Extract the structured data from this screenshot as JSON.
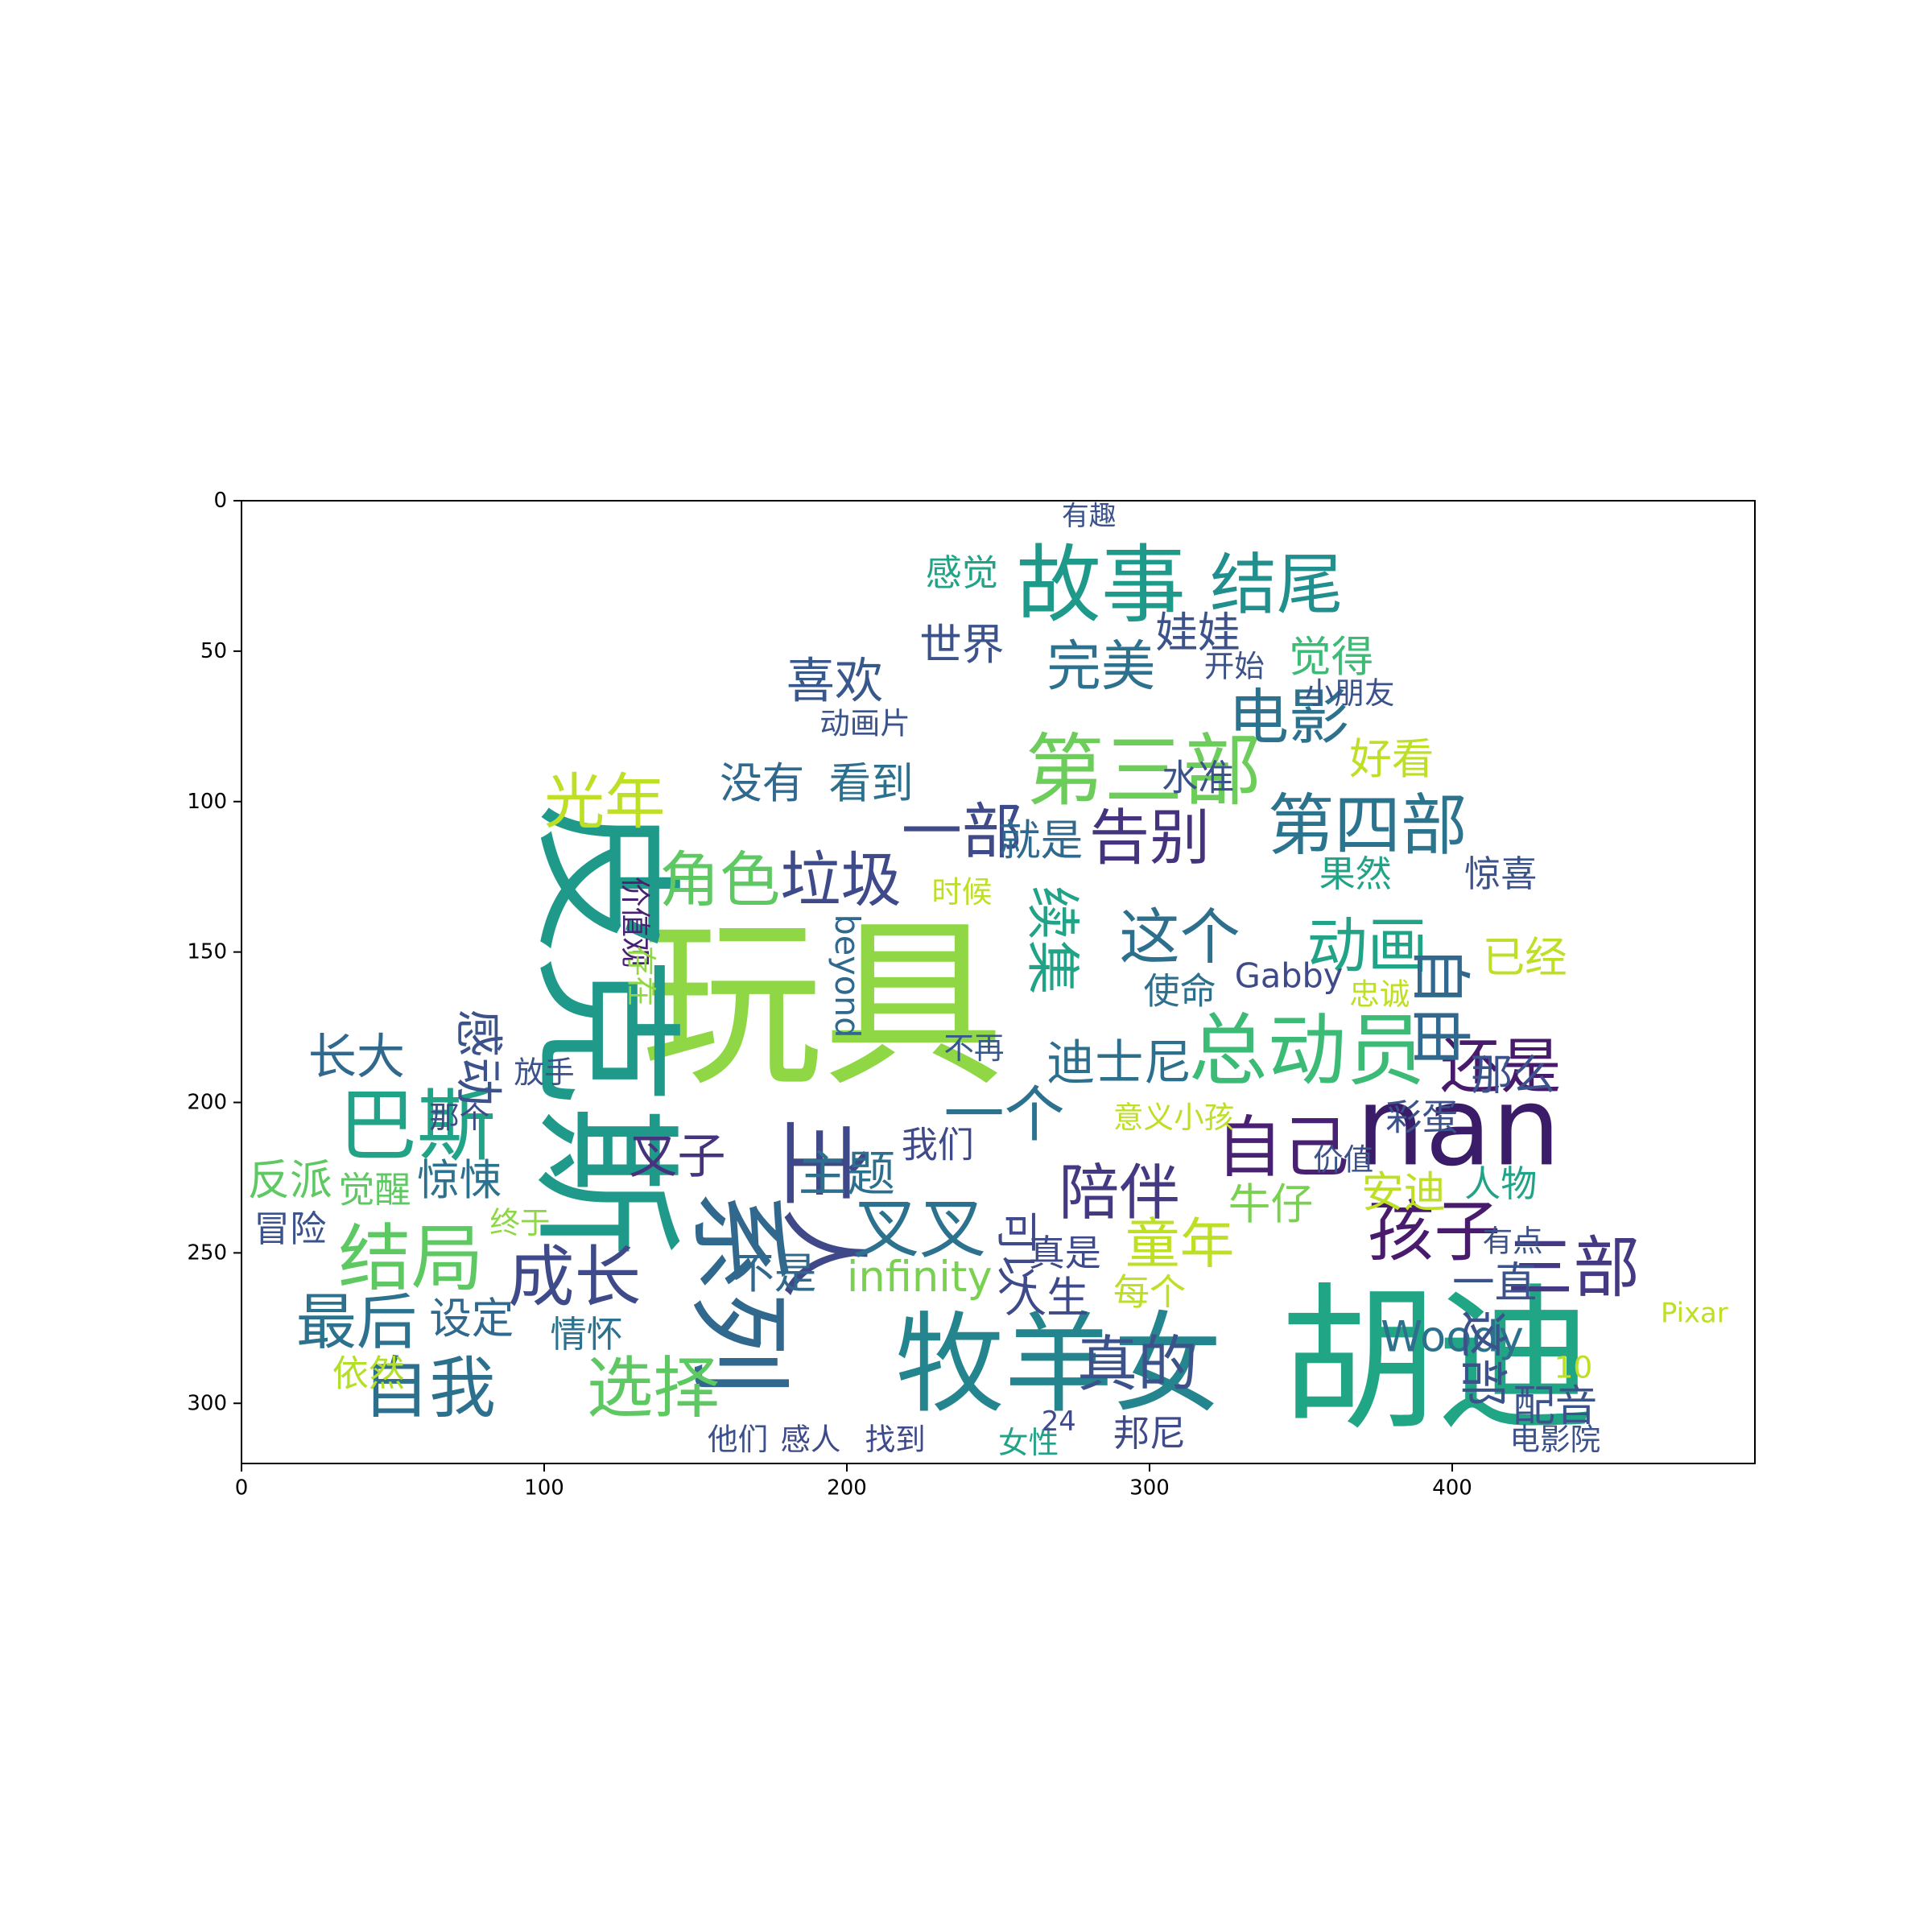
{
  "chart_data": {
    "type": "wordcloud",
    "title": "",
    "xlabel": "",
    "ylabel": "",
    "xlim": [
      0,
      500
    ],
    "ylim": [
      320,
      0
    ],
    "y_axis_inverted": true,
    "grid": false,
    "legend": "none",
    "colormap": "viridis",
    "xticks": [
      0,
      100,
      200,
      300,
      400
    ],
    "yticks": [
      0,
      50,
      100,
      150,
      200,
      250,
      300
    ],
    "words": [
      {
        "text": "玩具",
        "x": 192,
        "y": 168,
        "size": 60,
        "color": "#8fd744"
      },
      {
        "text": "胡迪",
        "x": 395,
        "y": 286,
        "size": 52,
        "color": "#21a685"
      },
      {
        "text": "皮克斯",
        "x": 120,
        "y": 176,
        "size": 50,
        "color": "#1f9a8a",
        "vertical": true
      },
      {
        "text": "牧羊女",
        "x": 270,
        "y": 287,
        "size": 36,
        "color": "#25858e"
      },
      {
        "text": "nan",
        "x": 402,
        "y": 208,
        "size": 36,
        "color": "#3b1c69"
      },
      {
        "text": "系列",
        "x": 164,
        "y": 263,
        "size": 34,
        "color": "#30688e",
        "vertical": true
      },
      {
        "text": "主人",
        "x": 192,
        "y": 235,
        "size": 30,
        "color": "#3f4889",
        "vertical": true
      },
      {
        "text": "故事",
        "x": 284,
        "y": 28,
        "size": 28,
        "color": "#1f9a8a"
      },
      {
        "text": "结尾",
        "x": 342,
        "y": 28,
        "size": 22,
        "color": "#218f8d"
      },
      {
        "text": "第三部",
        "x": 298,
        "y": 90,
        "size": 26,
        "color": "#6ccd5a"
      },
      {
        "text": "第四部",
        "x": 372,
        "y": 108,
        "size": 22,
        "color": "#2c738e"
      },
      {
        "text": "总动员",
        "x": 352,
        "y": 183,
        "size": 26,
        "color": "#3bbb75"
      },
      {
        "text": "巴斯",
        "x": 58,
        "y": 208,
        "size": 26,
        "color": "#20a386"
      },
      {
        "text": "结局",
        "x": 56,
        "y": 252,
        "size": 24,
        "color": "#5ec962"
      },
      {
        "text": "最后",
        "x": 38,
        "y": 273,
        "size": 20,
        "color": "#2c728e"
      },
      {
        "text": "自我",
        "x": 62,
        "y": 295,
        "size": 22,
        "color": "#2d708e"
      },
      {
        "text": "选择",
        "x": 136,
        "y": 295,
        "size": 22,
        "color": "#5ec962"
      },
      {
        "text": "成长",
        "x": 110,
        "y": 258,
        "size": 22,
        "color": "#3e4a89"
      },
      {
        "text": "光年",
        "x": 120,
        "y": 100,
        "size": 20,
        "color": "#bddf26"
      },
      {
        "text": "角色",
        "x": 158,
        "y": 126,
        "size": 20,
        "color": "#5ec962"
      },
      {
        "text": "垃圾",
        "x": 198,
        "y": 126,
        "size": 20,
        "color": "#3e4a89"
      },
      {
        "text": "一部",
        "x": 238,
        "y": 110,
        "size": 20,
        "color": "#3e4a89"
      },
      {
        "text": "告别",
        "x": 300,
        "y": 112,
        "size": 20,
        "color": "#46337e"
      },
      {
        "text": "电影",
        "x": 346,
        "y": 72,
        "size": 20,
        "color": "#2c728e"
      },
      {
        "text": "完美",
        "x": 284,
        "y": 55,
        "size": 18,
        "color": "#2c728e"
      },
      {
        "text": "喜欢",
        "x": 196,
        "y": 60,
        "size": 16,
        "color": "#38588c"
      },
      {
        "text": "动画",
        "x": 372,
        "y": 148,
        "size": 20,
        "color": "#20a386"
      },
      {
        "text": "这个",
        "x": 310,
        "y": 145,
        "size": 20,
        "color": "#2d708e"
      },
      {
        "text": "还是",
        "x": 416,
        "y": 188,
        "size": 20,
        "color": "#481a6c"
      },
      {
        "text": "自由",
        "x": 396,
        "y": 168,
        "size": 20,
        "color": "#31688e",
        "vertical": true
      },
      {
        "text": "自己",
        "x": 344,
        "y": 215,
        "size": 22,
        "color": "#482173"
      },
      {
        "text": "孩子",
        "x": 394,
        "y": 243,
        "size": 22,
        "color": "#481b6d"
      },
      {
        "text": "三部",
        "x": 440,
        "y": 255,
        "size": 22,
        "color": "#443983"
      },
      {
        "text": "陪伴",
        "x": 290,
        "y": 230,
        "size": 20,
        "color": "#443983"
      },
      {
        "text": "童年",
        "x": 310,
        "y": 247,
        "size": 18,
        "color": "#bddf26"
      },
      {
        "text": "真的",
        "x": 296,
        "y": 287,
        "size": 20,
        "color": "#3b528b"
      },
      {
        "text": "叉叉",
        "x": 224,
        "y": 242,
        "size": 22,
        "color": "#2c728e"
      },
      {
        "text": "一个",
        "x": 252,
        "y": 204,
        "size": 20,
        "color": "#2c728e"
      },
      {
        "text": "迪士尼",
        "x": 290,
        "y": 187,
        "size": 16,
        "color": "#2d708e"
      },
      {
        "text": "叉子",
        "x": 144,
        "y": 218,
        "size": 16,
        "color": "#46337e"
      },
      {
        "text": "主题",
        "x": 200,
        "y": 224,
        "size": 16,
        "color": "#2d708e"
      },
      {
        "text": "续集",
        "x": 268,
        "y": 146,
        "size": 18,
        "color": "#20a386",
        "vertical": true
      },
      {
        "text": "感动",
        "x": 78,
        "y": 185,
        "size": 16,
        "color": "#3b528b",
        "vertical": true
      },
      {
        "text": "长大",
        "x": 38,
        "y": 185,
        "size": 16,
        "color": "#31688e"
      },
      {
        "text": "惊悚",
        "x": 72,
        "y": 226,
        "size": 14,
        "color": "#2c728e"
      },
      {
        "text": "那个",
        "x": 72,
        "y": 205,
        "size": 10,
        "color": "#3e4a89"
      },
      {
        "text": "反派",
        "x": 16,
        "y": 226,
        "size": 14,
        "color": "#5ec962"
      },
      {
        "text": "觉醒",
        "x": 44,
        "y": 229,
        "size": 12,
        "color": "#5ec962"
      },
      {
        "text": "冒险",
        "x": 16,
        "y": 242,
        "size": 12,
        "color": "#3b528b"
      },
      {
        "text": "设定",
        "x": 76,
        "y": 272,
        "size": 14,
        "color": "#30688e"
      },
      {
        "text": "依然",
        "x": 42,
        "y": 290,
        "size": 12,
        "color": "#b5de2b"
      },
      {
        "text": "情怀",
        "x": 114,
        "y": 277,
        "size": 12,
        "color": "#2c728e"
      },
      {
        "text": "没有",
        "x": 172,
        "y": 94,
        "size": 14,
        "color": "#31688e"
      },
      {
        "text": "看到",
        "x": 208,
        "y": 94,
        "size": 14,
        "color": "#2d708e"
      },
      {
        "text": "就是",
        "x": 264,
        "y": 113,
        "size": 14,
        "color": "#31688e"
      },
      {
        "text": "价值观",
        "x": 130,
        "y": 140,
        "size": 10,
        "color": "#482173",
        "vertical": true
      },
      {
        "text": "存在",
        "x": 132,
        "y": 158,
        "size": 10,
        "color": "#8fd744",
        "vertical": true
      },
      {
        "text": "beyond",
        "x": 200,
        "y": 158,
        "size": 11,
        "color": "#31688e",
        "vertical": true
      },
      {
        "text": "Gabby",
        "x": 346,
        "y": 158,
        "size": 11,
        "color": "#3e4a89"
      },
      {
        "text": "使命",
        "x": 310,
        "y": 163,
        "size": 12,
        "color": "#2d708e"
      },
      {
        "text": "infinity",
        "x": 224,
        "y": 258,
        "size": 14,
        "color": "#7ad151"
      },
      {
        "text": "不是",
        "x": 176,
        "y": 257,
        "size": 14,
        "color": "#31688e"
      },
      {
        "text": "可以",
        "x": 256,
        "y": 250,
        "size": 14,
        "color": "#3e4a89",
        "vertical": true
      },
      {
        "text": "真是",
        "x": 272,
        "y": 250,
        "size": 12,
        "color": "#3e4a89"
      },
      {
        "text": "人生",
        "x": 266,
        "y": 265,
        "size": 14,
        "color": "#3e4a89"
      },
      {
        "text": "每个",
        "x": 300,
        "y": 263,
        "size": 12,
        "color": "#bddf26"
      },
      {
        "text": "牛仔",
        "x": 340,
        "y": 234,
        "size": 14,
        "color": "#7ad151"
      },
      {
        "text": "安迪",
        "x": 384,
        "y": 230,
        "size": 14,
        "color": "#bddf26"
      },
      {
        "text": "人物",
        "x": 416,
        "y": 227,
        "size": 12,
        "color": "#20a386"
      },
      {
        "text": "有点",
        "x": 420,
        "y": 246,
        "size": 10,
        "color": "#3b528b"
      },
      {
        "text": "一直",
        "x": 414,
        "y": 260,
        "size": 14,
        "color": "#3b528b"
      },
      {
        "text": "Woody",
        "x": 400,
        "y": 278,
        "size": 14,
        "color": "#2d708e"
      },
      {
        "text": "这部",
        "x": 410,
        "y": 285,
        "size": 16,
        "color": "#3b528b",
        "vertical": true
      },
      {
        "text": "配音",
        "x": 434,
        "y": 301,
        "size": 14,
        "color": "#3b528b"
      },
      {
        "text": "Pixar",
        "x": 480,
        "y": 270,
        "size": 9,
        "color": "#bddf26"
      },
      {
        "text": "10",
        "x": 440,
        "y": 288,
        "size": 10,
        "color": "#bddf26"
      },
      {
        "text": "电影院",
        "x": 434,
        "y": 312,
        "size": 10,
        "color": "#3b528b"
      },
      {
        "text": "邦尼",
        "x": 300,
        "y": 310,
        "size": 12,
        "color": "#3e4a89"
      },
      {
        "text": "找到",
        "x": 216,
        "y": 312,
        "size": 10,
        "color": "#3e4a89"
      },
      {
        "text": "女性",
        "x": 260,
        "y": 313,
        "size": 10,
        "color": "#20a386"
      },
      {
        "text": "他们",
        "x": 164,
        "y": 312,
        "size": 10,
        "color": "#3b528b"
      },
      {
        "text": "感人",
        "x": 188,
        "y": 312,
        "size": 10,
        "color": "#3e4a89"
      },
      {
        "text": "终于",
        "x": 92,
        "y": 240,
        "size": 10,
        "color": "#8fd744"
      },
      {
        "text": "意义",
        "x": 298,
        "y": 205,
        "size": 10,
        "color": "#bddf26"
      },
      {
        "text": "小孩",
        "x": 318,
        "y": 205,
        "size": 10,
        "color": "#bddf26"
      },
      {
        "text": "不再",
        "x": 242,
        "y": 182,
        "size": 10,
        "color": "#38588c"
      },
      {
        "text": "彩蛋",
        "x": 390,
        "y": 205,
        "size": 12,
        "color": "#3b528b"
      },
      {
        "text": "那么",
        "x": 420,
        "y": 191,
        "size": 14,
        "color": "#3b528b"
      },
      {
        "text": "价值",
        "x": 364,
        "y": 219,
        "size": 10,
        "color": "#3b528b"
      },
      {
        "text": "忠诚",
        "x": 376,
        "y": 164,
        "size": 10,
        "color": "#bddf26"
      },
      {
        "text": "已经",
        "x": 424,
        "y": 152,
        "size": 14,
        "color": "#bddf26"
      },
      {
        "text": "惊喜",
        "x": 416,
        "y": 124,
        "size": 12,
        "color": "#3b528b"
      },
      {
        "text": "果然",
        "x": 368,
        "y": 124,
        "size": 12,
        "color": "#20a386"
      },
      {
        "text": "好看",
        "x": 380,
        "y": 86,
        "size": 14,
        "color": "#bddf26"
      },
      {
        "text": "水准",
        "x": 316,
        "y": 92,
        "size": 12,
        "color": "#3b528b"
      },
      {
        "text": "小朋友",
        "x": 366,
        "y": 64,
        "size": 10,
        "color": "#3b528b"
      },
      {
        "text": "觉得",
        "x": 360,
        "y": 52,
        "size": 14,
        "color": "#3bbb75"
      },
      {
        "text": "开始",
        "x": 328,
        "y": 55,
        "size": 10,
        "color": "#3b528b"
      },
      {
        "text": "娃娃",
        "x": 316,
        "y": 44,
        "size": 14,
        "color": "#3b528b"
      },
      {
        "text": "世界",
        "x": 238,
        "y": 48,
        "size": 14,
        "color": "#3b528b"
      },
      {
        "text": "感觉",
        "x": 238,
        "y": 24,
        "size": 12,
        "color": "#20a386"
      },
      {
        "text": "动画片",
        "x": 206,
        "y": 74,
        "size": 10,
        "color": "#3b528b"
      },
      {
        "text": "时候",
        "x": 238,
        "y": 130,
        "size": 10,
        "color": "#bddf26"
      },
      {
        "text": "我们",
        "x": 230,
        "y": 214,
        "size": 12,
        "color": "#3e4a89"
      },
      {
        "text": "24",
        "x": 270,
        "y": 306,
        "size": 9,
        "color": "#3e4a89"
      },
      {
        "text": "放手",
        "x": 100,
        "y": 190,
        "size": 10,
        "color": "#3b528b"
      },
      {
        "text": "有趣",
        "x": 280,
        "y": 5,
        "size": 9,
        "color": "#3b528b"
      }
    ]
  }
}
